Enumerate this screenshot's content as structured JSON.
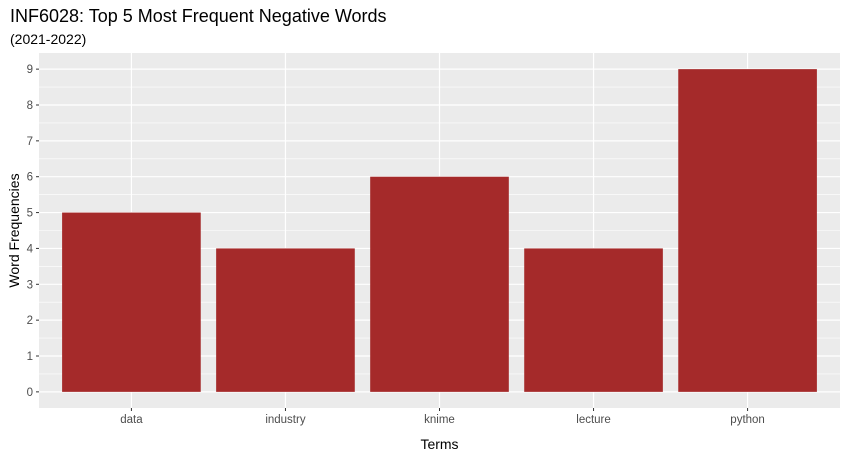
{
  "chart_data": {
    "type": "bar",
    "title": "INF6028: Top 5 Most Frequent Negative Words",
    "subtitle": "(2021-2022)",
    "xlabel": "Terms",
    "ylabel": "Word Frequencies",
    "categories": [
      "data",
      "industry",
      "knime",
      "lecture",
      "python"
    ],
    "values": [
      5,
      4,
      6,
      4,
      9
    ],
    "ylim": [
      0,
      9
    ],
    "yticks": [
      "0",
      "1",
      "2",
      "3",
      "4",
      "5",
      "6",
      "7",
      "8",
      "9"
    ],
    "grid": true,
    "bar_color": "#a52a2a",
    "panel_color": "#ebebeb",
    "grid_color": "#ffffff"
  }
}
